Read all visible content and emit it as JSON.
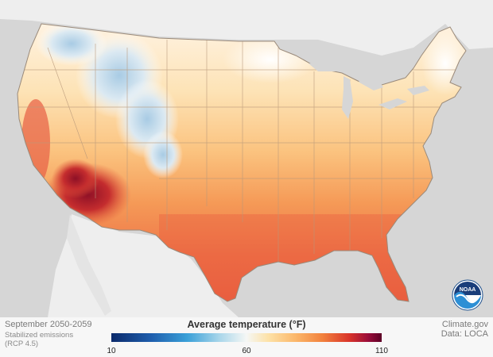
{
  "map": {
    "title_period": "September 2050-2059",
    "scenario": "Stabilized emissions (RCP 4.5)",
    "credit": "Climate.gov",
    "data_credit": "Data: LOCA",
    "legend": {
      "title": "Average temperature (°F)",
      "min": "10",
      "mid": "60",
      "max": "110"
    },
    "logo_text": "NOAA",
    "colors": {
      "ocean": "#d6d6d6",
      "land_outside": "#eeeeee",
      "warm_south": "#ec6b46",
      "hot_desert": "#b31d2c",
      "cool_mountains": "#b9d5e8",
      "moderate_north": "#fddca4"
    }
  }
}
